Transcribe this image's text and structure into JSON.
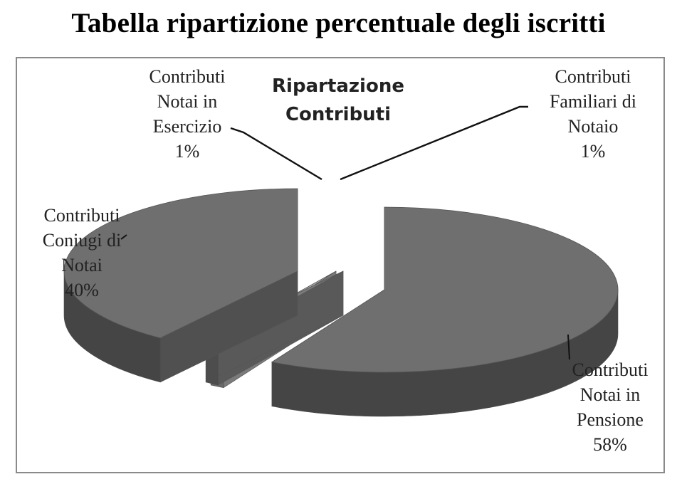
{
  "page": {
    "title": "Tabella ripartizione percentuale degli iscritti"
  },
  "chart_data": {
    "type": "pie",
    "title_line1": "Ripartazione",
    "title_line2": "Contributi",
    "three_d": true,
    "exploded": true,
    "legend": "none",
    "slices": [
      {
        "key": "pensione",
        "label_lines": [
          "Contributi",
          "Notai in",
          "Pensione"
        ],
        "value": 58,
        "value_label": "58%",
        "color": "#6f6f6f"
      },
      {
        "key": "esercizio",
        "label_lines": [
          "Contributi",
          "Notai in",
          "Esercizio"
        ],
        "value": 1,
        "value_label": "1%",
        "color": "#a9a9a9"
      },
      {
        "key": "familiari",
        "label_lines": [
          "Contributi",
          "Familiari di",
          "Notaio"
        ],
        "value": 1,
        "value_label": "1%",
        "color": "#7c7c7c"
      },
      {
        "key": "coniugi",
        "label_lines": [
          "Contributi",
          "Coniugi di",
          "Notai"
        ],
        "value": 40,
        "value_label": "40%",
        "color": "#6f6f6f"
      }
    ]
  }
}
